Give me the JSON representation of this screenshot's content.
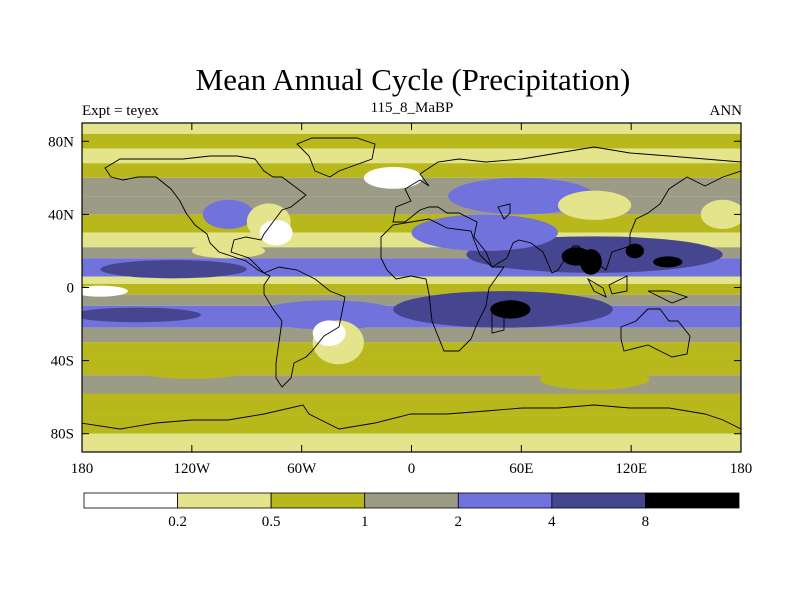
{
  "chart_data": {
    "type": "heatmap",
    "title": "Mean Annual Cycle (Precipitation)",
    "left_string": "Expt = teyex",
    "center_string": "115_8_MaBP",
    "right_string": "ANN",
    "xlim": [
      -180,
      180
    ],
    "ylim": [
      -90,
      90
    ],
    "x_ticks": [
      {
        "value": -180,
        "label": "180"
      },
      {
        "value": -120,
        "label": "120W"
      },
      {
        "value": -60,
        "label": "60W"
      },
      {
        "value": 0,
        "label": "0"
      },
      {
        "value": 60,
        "label": "60E"
      },
      {
        "value": 120,
        "label": "120E"
      },
      {
        "value": 180,
        "label": "180"
      }
    ],
    "y_ticks": [
      {
        "value": 80,
        "label": "80N"
      },
      {
        "value": 40,
        "label": "40N"
      },
      {
        "value": 0,
        "label": "0"
      },
      {
        "value": -40,
        "label": "40S"
      },
      {
        "value": -80,
        "label": "80S"
      }
    ],
    "levels": [
      0.2,
      0.5,
      1,
      2,
      4,
      8
    ],
    "colorbar": [
      "#ffffff",
      "#e4e48c",
      "#b8b81c",
      "#9c9c86",
      "#7272dc",
      "#464690",
      "#000000"
    ],
    "field_bands": [
      {
        "lat": [
          90,
          84
        ],
        "level": 1
      },
      {
        "lat": [
          84,
          76
        ],
        "level": 2
      },
      {
        "lat": [
          76,
          68
        ],
        "level": 1
      },
      {
        "lat": [
          68,
          60
        ],
        "level": 2
      },
      {
        "lat": [
          60,
          50
        ],
        "level": 3
      },
      {
        "lat": [
          50,
          40
        ],
        "level": 3
      },
      {
        "lat": [
          40,
          30
        ],
        "level": 2
      },
      {
        "lat": [
          30,
          22
        ],
        "level": 1
      },
      {
        "lat": [
          22,
          16
        ],
        "level": 3
      },
      {
        "lat": [
          16,
          6
        ],
        "level": 4
      },
      {
        "lat": [
          6,
          2
        ],
        "level": 1
      },
      {
        "lat": [
          2,
          -4
        ],
        "level": 2
      },
      {
        "lat": [
          -4,
          -10
        ],
        "level": 3
      },
      {
        "lat": [
          -10,
          -22
        ],
        "level": 4
      },
      {
        "lat": [
          -22,
          -30
        ],
        "level": 3
      },
      {
        "lat": [
          -30,
          -38
        ],
        "level": 2
      },
      {
        "lat": [
          -38,
          -48
        ],
        "level": 2
      },
      {
        "lat": [
          -48,
          -58
        ],
        "level": 3
      },
      {
        "lat": [
          -58,
          -70
        ],
        "level": 2
      },
      {
        "lat": [
          -70,
          -80
        ],
        "level": 2
      },
      {
        "lat": [
          -80,
          -90
        ],
        "level": 1
      }
    ],
    "field_patches": [
      {
        "lon": -100,
        "lat": 40,
        "rlon": 14,
        "rlat": 8,
        "level": 4
      },
      {
        "lon": -78,
        "lat": 36,
        "rlon": 12,
        "rlat": 10,
        "level": 1
      },
      {
        "lon": -74,
        "lat": 30,
        "rlon": 9,
        "rlat": 7,
        "level": 0
      },
      {
        "lon": -130,
        "lat": 10,
        "rlon": 40,
        "rlat": 5,
        "level": 5
      },
      {
        "lon": -150,
        "lat": -15,
        "rlon": 35,
        "rlat": 4,
        "level": 5
      },
      {
        "lon": -45,
        "lat": -15,
        "rlon": 40,
        "rlat": 8,
        "level": 4
      },
      {
        "lon": -40,
        "lat": -30,
        "rlon": 14,
        "rlat": 12,
        "level": 1
      },
      {
        "lon": -45,
        "lat": -25,
        "rlon": 9,
        "rlat": 7,
        "level": 0
      },
      {
        "lon": 50,
        "lat": -12,
        "rlon": 60,
        "rlat": 10,
        "level": 5
      },
      {
        "lon": 54,
        "lat": -12,
        "rlon": 11,
        "rlat": 5,
        "level": 6
      },
      {
        "lon": 100,
        "lat": 18,
        "rlon": 70,
        "rlat": 10,
        "level": 5
      },
      {
        "lon": 90,
        "lat": 17,
        "rlon": 8,
        "rlat": 5,
        "level": 6
      },
      {
        "lon": 98,
        "lat": 14,
        "rlon": 6,
        "rlat": 7,
        "level": 6
      },
      {
        "lon": 122,
        "lat": 20,
        "rlon": 5,
        "rlat": 4,
        "level": 6
      },
      {
        "lon": 140,
        "lat": 14,
        "rlon": 8,
        "rlat": 3,
        "level": 6
      },
      {
        "lon": 40,
        "lat": 30,
        "rlon": 40,
        "rlat": 10,
        "level": 4
      },
      {
        "lon": 60,
        "lat": 50,
        "rlon": 40,
        "rlat": 10,
        "level": 4
      },
      {
        "lon": -10,
        "lat": 60,
        "rlon": 16,
        "rlat": 6,
        "level": 0
      },
      {
        "lon": 100,
        "lat": 45,
        "rlon": 20,
        "rlat": 8,
        "level": 1
      },
      {
        "lon": -100,
        "lat": 20,
        "rlon": 20,
        "rlat": 4,
        "level": 1
      },
      {
        "lon": -170,
        "lat": -2,
        "rlon": 15,
        "rlat": 3,
        "level": 0
      },
      {
        "lon": -120,
        "lat": -45,
        "rlon": 30,
        "rlat": 5,
        "level": 2
      },
      {
        "lon": 100,
        "lat": -50,
        "rlon": 30,
        "rlat": 6,
        "level": 2
      },
      {
        "lon": 170,
        "lat": 40,
        "rlon": 12,
        "rlat": 8,
        "level": 1
      }
    ]
  }
}
